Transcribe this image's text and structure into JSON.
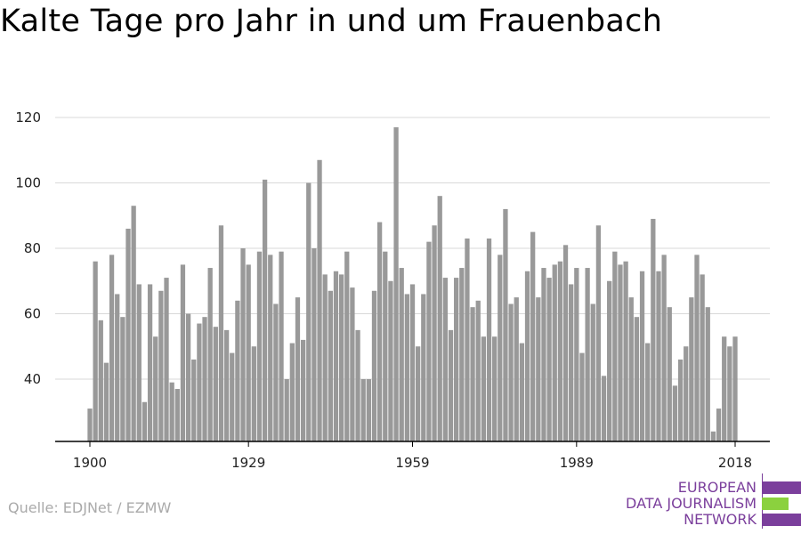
{
  "title": "Kalte Tage pro Jahr in und um Frauenbach",
  "source": "Quelle: EDJNet / EZMW",
  "logo": {
    "lines": [
      "EUROPEAN",
      "DATA JOURNALISM",
      "NETWORK"
    ],
    "colors": {
      "purple": "#7b3f9c",
      "green": "#8bd13e"
    }
  },
  "chart_data": {
    "type": "bar",
    "title": "Kalte Tage pro Jahr in und um Frauenbach",
    "xlabel": "",
    "ylabel": "",
    "ylim": [
      21,
      126
    ],
    "yticks": [
      40,
      60,
      80,
      100,
      120
    ],
    "xticks": [
      1900,
      1929,
      1959,
      1989,
      2018
    ],
    "grid": true,
    "bar_color": "#999999",
    "x": [
      1900,
      1901,
      1902,
      1903,
      1904,
      1905,
      1906,
      1907,
      1908,
      1909,
      1910,
      1911,
      1912,
      1913,
      1914,
      1915,
      1916,
      1917,
      1918,
      1919,
      1920,
      1921,
      1922,
      1923,
      1924,
      1925,
      1926,
      1927,
      1928,
      1929,
      1930,
      1931,
      1932,
      1933,
      1934,
      1935,
      1936,
      1937,
      1938,
      1939,
      1940,
      1941,
      1942,
      1943,
      1944,
      1945,
      1946,
      1947,
      1948,
      1949,
      1950,
      1951,
      1952,
      1953,
      1954,
      1955,
      1956,
      1957,
      1958,
      1959,
      1960,
      1961,
      1962,
      1963,
      1964,
      1965,
      1966,
      1967,
      1968,
      1969,
      1970,
      1971,
      1972,
      1973,
      1974,
      1975,
      1976,
      1977,
      1978,
      1979,
      1980,
      1981,
      1982,
      1983,
      1984,
      1985,
      1986,
      1987,
      1988,
      1989,
      1990,
      1991,
      1992,
      1993,
      1994,
      1995,
      1996,
      1997,
      1998,
      1999,
      2000,
      2001,
      2002,
      2003,
      2004,
      2005,
      2006,
      2007,
      2008,
      2009,
      2010,
      2011,
      2012,
      2013,
      2014,
      2015,
      2016,
      2017,
      2018
    ],
    "values": [
      31,
      76,
      58,
      45,
      78,
      66,
      59,
      86,
      93,
      69,
      33,
      69,
      53,
      67,
      71,
      39,
      37,
      75,
      60,
      46,
      57,
      59,
      74,
      56,
      87,
      55,
      48,
      64,
      80,
      75,
      50,
      79,
      101,
      78,
      63,
      79,
      40,
      51,
      65,
      52,
      100,
      80,
      107,
      72,
      67,
      73,
      72,
      79,
      68,
      55,
      40,
      40,
      67,
      88,
      79,
      70,
      117,
      74,
      66,
      69,
      50,
      66,
      82,
      87,
      96,
      71,
      55,
      71,
      74,
      83,
      62,
      64,
      53,
      83,
      53,
      78,
      92,
      63,
      65,
      51,
      73,
      85,
      65,
      74,
      71,
      75,
      76,
      81,
      69,
      74,
      48,
      74,
      63,
      87,
      41,
      70,
      79,
      75,
      76,
      65,
      59,
      73,
      51,
      89,
      73,
      78,
      62,
      38,
      46,
      50,
      65,
      78,
      72,
      62,
      24,
      31,
      53,
      50,
      53
    ]
  }
}
